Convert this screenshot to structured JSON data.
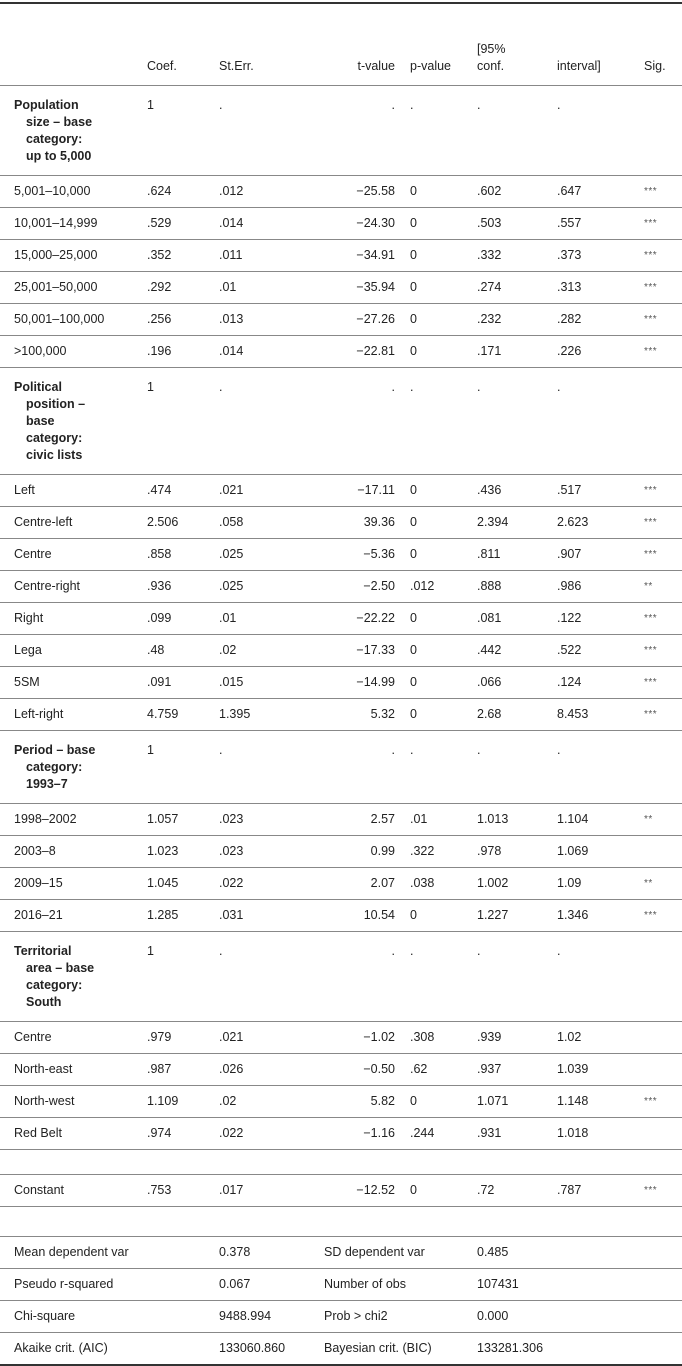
{
  "header": {
    "columns": [
      "",
      "Coef.",
      "St.Err.",
      "t-value",
      "p-value",
      "[95%\nconf.",
      "interval]",
      "Sig."
    ]
  },
  "rows": [
    {
      "type": "group",
      "label_lines": [
        "Population",
        "size – base",
        "category:",
        "up to 5,000"
      ],
      "cells": [
        "1",
        ".",
        ".",
        ".",
        ".",
        ".",
        ""
      ]
    },
    {
      "type": "data",
      "label": "5,001–10,000",
      "cells": [
        ".624",
        ".012",
        "−25.58",
        "0",
        ".602",
        ".647",
        "***"
      ]
    },
    {
      "type": "data",
      "label": "10,001–14,999",
      "cells": [
        ".529",
        ".014",
        "−24.30",
        "0",
        ".503",
        ".557",
        "***"
      ]
    },
    {
      "type": "data",
      "label": "15,000–25,000",
      "cells": [
        ".352",
        ".011",
        "−34.91",
        "0",
        ".332",
        ".373",
        "***"
      ]
    },
    {
      "type": "data",
      "label": "25,001–50,000",
      "cells": [
        ".292",
        ".01",
        "−35.94",
        "0",
        ".274",
        ".313",
        "***"
      ]
    },
    {
      "type": "data",
      "label": "50,001–100,000",
      "cells": [
        ".256",
        ".013",
        "−27.26",
        "0",
        ".232",
        ".282",
        "***"
      ]
    },
    {
      "type": "data",
      "label": ">100,000",
      "cells": [
        ".196",
        ".014",
        "−22.81",
        "0",
        ".171",
        ".226",
        "***"
      ]
    },
    {
      "type": "group",
      "label_lines": [
        "Political",
        "position –",
        "base",
        "category:",
        "civic lists"
      ],
      "cells": [
        "1",
        ".",
        ".",
        ".",
        ".",
        ".",
        ""
      ]
    },
    {
      "type": "data",
      "label": "Left",
      "cells": [
        ".474",
        ".021",
        "−17.11",
        "0",
        ".436",
        ".517",
        "***"
      ]
    },
    {
      "type": "data",
      "label": "Centre-left",
      "cells": [
        "2.506",
        ".058",
        "39.36",
        "0",
        "2.394",
        "2.623",
        "***"
      ]
    },
    {
      "type": "data",
      "label": "Centre",
      "cells": [
        ".858",
        ".025",
        "−5.36",
        "0",
        ".811",
        ".907",
        "***"
      ]
    },
    {
      "type": "data",
      "label": "Centre-right",
      "cells": [
        ".936",
        ".025",
        "−2.50",
        ".012",
        ".888",
        ".986",
        "**"
      ]
    },
    {
      "type": "data",
      "label": "Right",
      "cells": [
        ".099",
        ".01",
        "−22.22",
        "0",
        ".081",
        ".122",
        "***"
      ]
    },
    {
      "type": "data",
      "label": "Lega",
      "cells": [
        ".48",
        ".02",
        "−17.33",
        "0",
        ".442",
        ".522",
        "***"
      ]
    },
    {
      "type": "data",
      "label": "5SM",
      "cells": [
        ".091",
        ".015",
        "−14.99",
        "0",
        ".066",
        ".124",
        "***"
      ]
    },
    {
      "type": "data",
      "label": "Left-right",
      "cells": [
        "4.759",
        "1.395",
        "5.32",
        "0",
        "2.68",
        "8.453",
        "***"
      ]
    },
    {
      "type": "group",
      "label_lines": [
        "Period – base",
        "category:",
        "1993–7"
      ],
      "cells": [
        "1",
        ".",
        ".",
        ".",
        ".",
        ".",
        ""
      ]
    },
    {
      "type": "data",
      "label": "1998–2002",
      "cells": [
        "1.057",
        ".023",
        "2.57",
        ".01",
        "1.013",
        "1.104",
        "**"
      ]
    },
    {
      "type": "data",
      "label": "2003–8",
      "cells": [
        "1.023",
        ".023",
        "0.99",
        ".322",
        ".978",
        "1.069",
        ""
      ]
    },
    {
      "type": "data",
      "label": "2009–15",
      "cells": [
        "1.045",
        ".022",
        "2.07",
        ".038",
        "1.002",
        "1.09",
        "**"
      ]
    },
    {
      "type": "data",
      "label": "2016–21",
      "cells": [
        "1.285",
        ".031",
        "10.54",
        "0",
        "1.227",
        "1.346",
        "***"
      ]
    },
    {
      "type": "group",
      "label_lines": [
        "Territorial",
        "area – base",
        "category:",
        "South"
      ],
      "cells": [
        "1",
        ".",
        ".",
        ".",
        ".",
        ".",
        ""
      ]
    },
    {
      "type": "data",
      "label": "Centre",
      "cells": [
        ".979",
        ".021",
        "−1.02",
        ".308",
        ".939",
        "1.02",
        ""
      ]
    },
    {
      "type": "data",
      "label": "North-east",
      "cells": [
        ".987",
        ".026",
        "−0.50",
        ".62",
        ".937",
        "1.039",
        ""
      ]
    },
    {
      "type": "data",
      "label": "North-west",
      "cells": [
        "1.109",
        ".02",
        "5.82",
        "0",
        "1.071",
        "1.148",
        "***"
      ]
    },
    {
      "type": "data",
      "label": "Red Belt",
      "cells": [
        ".974",
        ".022",
        "−1.16",
        ".244",
        ".931",
        "1.018",
        ""
      ]
    },
    {
      "type": "empty"
    },
    {
      "type": "data",
      "label": "Constant",
      "cells": [
        ".753",
        ".017",
        "−12.52",
        "0",
        ".72",
        ".787",
        "***"
      ]
    },
    {
      "type": "empty2"
    }
  ],
  "stats": [
    {
      "label": "Mean dependent var",
      "value": "0.378",
      "label2": "SD dependent var",
      "value2": "0.485"
    },
    {
      "label": "Pseudo r-squared",
      "value": "0.067",
      "label2": "Number of obs",
      "value2": "107431"
    },
    {
      "label": "Chi-square",
      "value": "9488.994",
      "label2": "Prob > chi2",
      "value2": "0.000"
    },
    {
      "label": "Akaike crit. (AIC)",
      "value": "133060.860",
      "label2": "Bayesian crit. (BIC)",
      "value2": "133281.306"
    }
  ]
}
